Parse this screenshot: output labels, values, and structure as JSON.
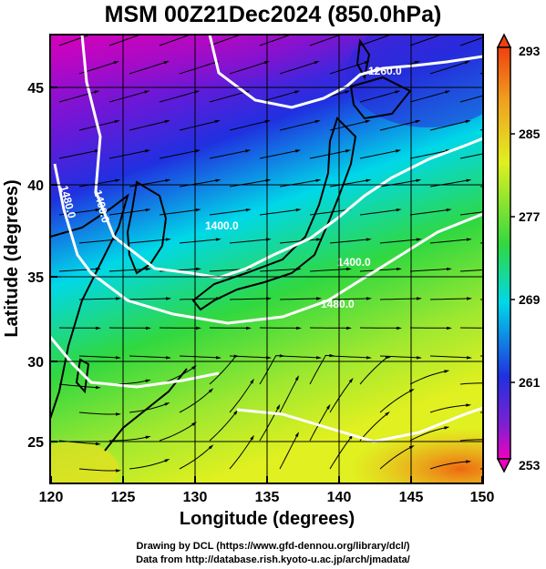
{
  "title": "MSM 00Z21Dec2024 (850.0hPa)",
  "map": {
    "x_axis": {
      "label": "Longitude (degrees)",
      "range": [
        120,
        150
      ],
      "ticks": [
        "120",
        "125",
        "130",
        "135",
        "140",
        "145",
        "150"
      ]
    },
    "y_axis": {
      "label": "Latitude  (degrees)",
      "range": [
        22.4,
        47.6
      ],
      "ticks": [
        "25",
        "30",
        "35",
        "40",
        "45"
      ]
    },
    "contour_labels": [
      "1260.0",
      "1400.0",
      "1480.0",
      "1400.0",
      "1400.0",
      "1480.0"
    ],
    "colors": {
      "cold": "#d000c0",
      "mid_blue": "#2030e0",
      "cyan": "#00d8e8",
      "green": "#30d840",
      "yellow": "#e0f020",
      "warm": "#f07010"
    }
  },
  "colorbar": {
    "labels": [
      "293",
      "285",
      "277",
      "269",
      "261",
      "253"
    ],
    "min": 253,
    "max": 293
  },
  "credits": {
    "line1": "Drawing by DCL (https://www.gfd-dennou.org/library/dcl/)",
    "line2": "Data from http://database.rish.kyoto-u.ac.jp/arch/jmadata/"
  }
}
